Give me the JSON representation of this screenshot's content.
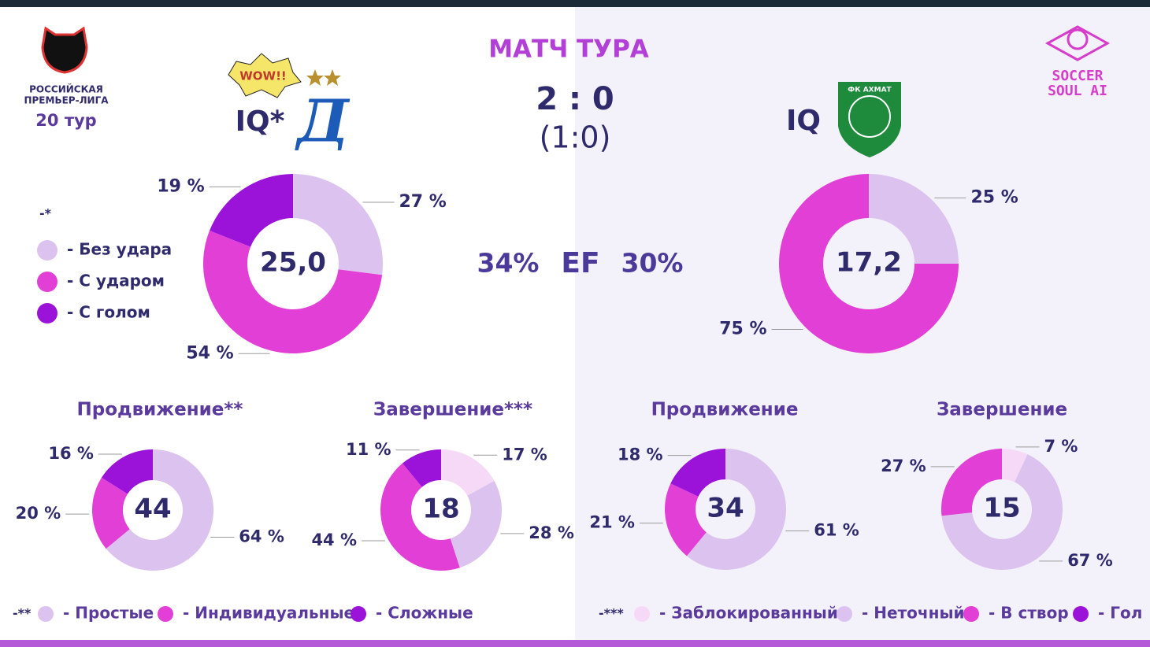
{
  "header": {
    "league_line1": "РОССИЙСКАЯ",
    "league_line2": "ПРЕМЬЕР-ЛИГА",
    "round": "20 тур",
    "title": "МАТЧ ТУРА",
    "score": "2 : 0",
    "half_score": "(1:0)",
    "home_badge": "WOW!!",
    "home_logo": "Д",
    "home_label": "IQ*",
    "away_label": "IQ",
    "away_crest": "ФК АХМАТ",
    "brand_line1": "SOCCER",
    "brand_line2": "SOUL AI"
  },
  "ef": {
    "label": "EF",
    "home": "34%",
    "away": "30%"
  },
  "legends": [
    {
      "marker": "-*",
      "items": [
        {
          "label": "- Без удара",
          "color": "#dcc3ef"
        },
        {
          "label": "- С ударом",
          "color": "#e23fd6"
        },
        {
          "label": "- С голом",
          "color": "#9b12d8"
        }
      ]
    },
    {
      "marker": "-**",
      "items": [
        {
          "label": "- Простые",
          "color": "#dcc3ef"
        },
        {
          "label": "- Индивидуальные",
          "color": "#e23fd6"
        },
        {
          "label": "- Сложные",
          "color": "#9b12d8"
        }
      ]
    },
    {
      "marker": "-***",
      "items": [
        {
          "label": "- Заблокированный",
          "color": "#f6d9f6"
        },
        {
          "label": "- Неточный",
          "color": "#dcc3ef"
        },
        {
          "label": "- В створ",
          "color": "#e23fd6"
        },
        {
          "label": "- Гол",
          "color": "#9b12d8"
        }
      ]
    }
  ],
  "chart_data": [
    {
      "type": "donut",
      "center_label": "25,0",
      "values": [
        27,
        54,
        19
      ],
      "value_labels": [
        "27 %",
        "54 %",
        "19 %"
      ],
      "colors": [
        "#dcc3ef",
        "#e23fd6",
        "#9b12d8"
      ]
    },
    {
      "type": "donut",
      "center_label": "17,2",
      "values": [
        25,
        75
      ],
      "value_labels": [
        "25 %",
        "75 %"
      ],
      "colors": [
        "#dcc3ef",
        "#e23fd6"
      ]
    },
    {
      "type": "donut",
      "title": "Продвижение**",
      "center_label": "44",
      "values": [
        64,
        20,
        16
      ],
      "value_labels": [
        "64 %",
        "20 %",
        "16 %"
      ],
      "colors": [
        "#dcc3ef",
        "#e23fd6",
        "#9b12d8"
      ]
    },
    {
      "type": "donut",
      "title": "Завершение***",
      "center_label": "18",
      "values": [
        17,
        28,
        44,
        11
      ],
      "value_labels": [
        "17 %",
        "28 %",
        "44 %",
        "11 %"
      ],
      "colors": [
        "#f6d9f6",
        "#dcc3ef",
        "#e23fd6",
        "#9b12d8"
      ]
    },
    {
      "type": "donut",
      "title": "Продвижение",
      "center_label": "34",
      "values": [
        61,
        21,
        18
      ],
      "value_labels": [
        "61 %",
        "21 %",
        "18 %"
      ],
      "colors": [
        "#dcc3ef",
        "#e23fd6",
        "#9b12d8"
      ]
    },
    {
      "type": "donut",
      "title": "Завершение",
      "center_label": "15",
      "values": [
        7,
        67,
        27
      ],
      "value_labels": [
        "7 %",
        "67 %",
        "27 %"
      ],
      "colors": [
        "#f6d9f6",
        "#dcc3ef",
        "#e23fd6"
      ]
    }
  ]
}
